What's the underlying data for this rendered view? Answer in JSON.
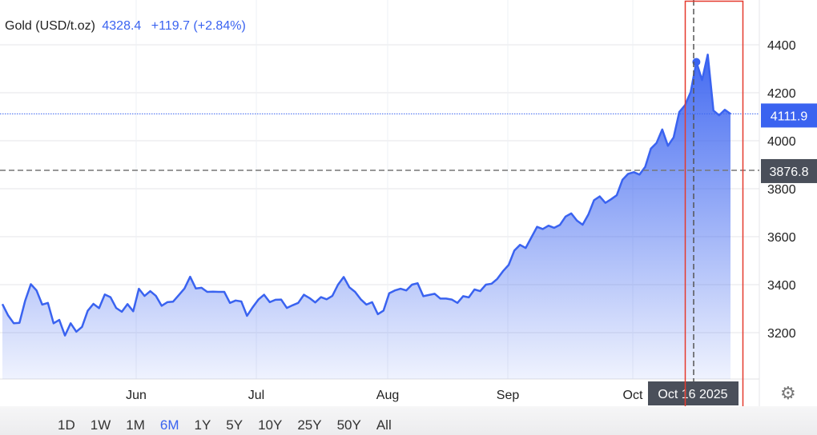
{
  "header": {
    "instrument": "Gold (USD/t.oz)",
    "price": "4328.4",
    "change": "+119.7 (+2.84%)"
  },
  "chart_data": {
    "type": "area",
    "title": "Gold (USD/t.oz)",
    "y_ticks": [
      3200,
      3400,
      3600,
      3800,
      4000,
      4200,
      4400
    ],
    "ylim": [
      3020,
      4540
    ],
    "x_ticks": [
      "Jun",
      "Jul",
      "Aug",
      "Sep",
      "Oct"
    ],
    "grid": true,
    "values": [
      3319,
      3272,
      3239,
      3241,
      3333,
      3402,
      3376,
      3317,
      3324,
      3239,
      3253,
      3188,
      3239,
      3204,
      3224,
      3291,
      3320,
      3302,
      3359,
      3348,
      3303,
      3287,
      3319,
      3289,
      3383,
      3353,
      3373,
      3353,
      3312,
      3327,
      3329,
      3356,
      3384,
      3433,
      3384,
      3387,
      3370,
      3371,
      3370,
      3370,
      3324,
      3334,
      3330,
      3270,
      3306,
      3338,
      3358,
      3327,
      3337,
      3338,
      3303,
      3314,
      3324,
      3358,
      3344,
      3326,
      3348,
      3339,
      3353,
      3400,
      3432,
      3389,
      3370,
      3339,
      3317,
      3327,
      3277,
      3292,
      3364,
      3376,
      3383,
      3376,
      3400,
      3406,
      3352,
      3357,
      3362,
      3342,
      3342,
      3338,
      3324,
      3352,
      3347,
      3380,
      3373,
      3400,
      3404,
      3424,
      3456,
      3482,
      3542,
      3566,
      3553,
      3597,
      3641,
      3632,
      3646,
      3637,
      3649,
      3684,
      3697,
      3667,
      3650,
      3692,
      3752,
      3768,
      3741,
      3756,
      3773,
      3837,
      3862,
      3869,
      3859,
      3891,
      3967,
      3991,
      4047,
      3979,
      4014,
      4120,
      4148,
      4203,
      4328.4,
      4253,
      4359,
      4126,
      4106,
      4129,
      4111.9
    ],
    "last_price_label": "4111.9",
    "reference_label": "3876.8",
    "reference_value": 3876.8,
    "crosshair_label": "Oct 16 2025",
    "highlight_color": "#e5392d",
    "line_color": "#3a63f0",
    "last_label_color": "#3a63f0",
    "reference_label_color": "#4a4f5a"
  },
  "ranges": [
    "1D",
    "1W",
    "1M",
    "6M",
    "1Y",
    "5Y",
    "10Y",
    "25Y",
    "50Y",
    "All"
  ],
  "active_range": "6M",
  "settings_icon": "gear-icon"
}
